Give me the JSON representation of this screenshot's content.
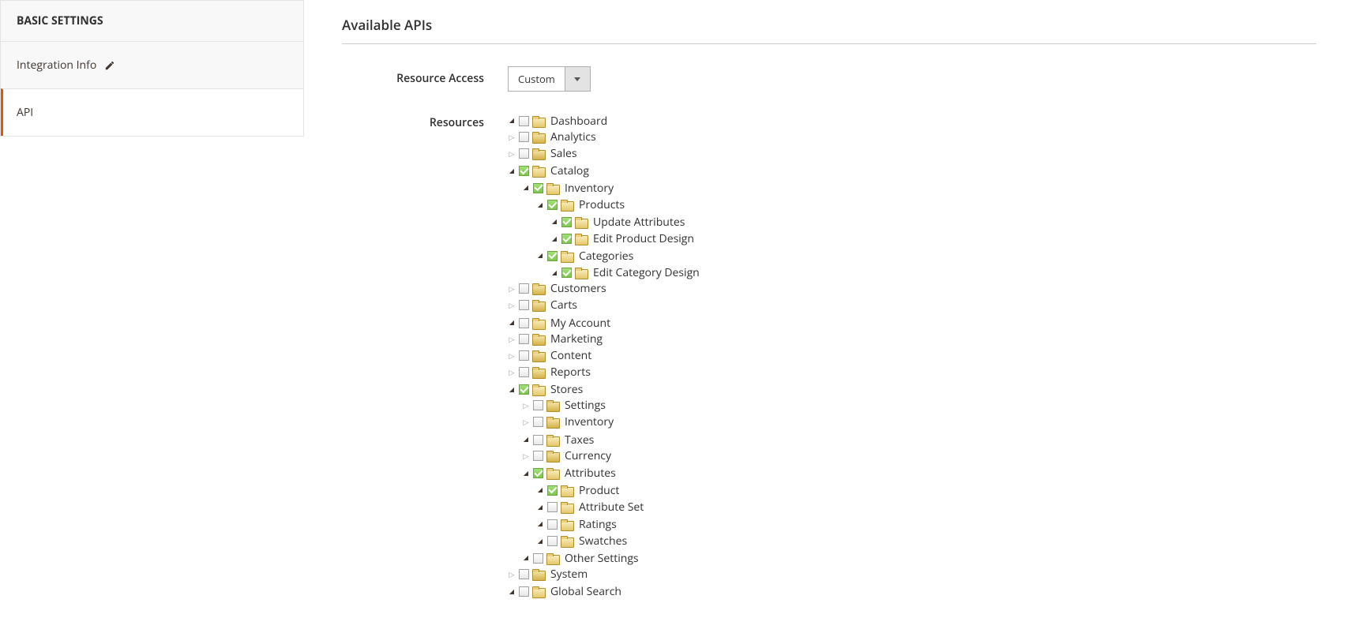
{
  "sidebar": {
    "header": "BASIC SETTINGS",
    "items": [
      {
        "label": "Integration Info",
        "icon": "pencil",
        "active": false
      },
      {
        "label": "API",
        "icon": null,
        "active": true
      }
    ]
  },
  "main": {
    "section_title": "Available APIs",
    "resource_access": {
      "label": "Resource Access",
      "value": "Custom"
    },
    "resources": {
      "label": "Resources",
      "tree": [
        {
          "label": "Dashboard",
          "expanded": true,
          "checked": false
        },
        {
          "label": "Analytics",
          "expanded": false,
          "checked": false
        },
        {
          "label": "Sales",
          "expanded": false,
          "checked": false
        },
        {
          "label": "Catalog",
          "expanded": true,
          "checked": true,
          "children": [
            {
              "label": "Inventory",
              "expanded": true,
              "checked": true,
              "children": [
                {
                  "label": "Products",
                  "expanded": true,
                  "checked": true,
                  "children": [
                    {
                      "label": "Update Attributes",
                      "expanded": true,
                      "checked": true
                    },
                    {
                      "label": "Edit Product Design",
                      "expanded": true,
                      "checked": true
                    }
                  ]
                },
                {
                  "label": "Categories",
                  "expanded": true,
                  "checked": true,
                  "children": [
                    {
                      "label": "Edit Category Design",
                      "expanded": true,
                      "checked": true
                    }
                  ]
                }
              ]
            }
          ]
        },
        {
          "label": "Customers",
          "expanded": false,
          "checked": false
        },
        {
          "label": "Carts",
          "expanded": false,
          "checked": false
        },
        {
          "label": "My Account",
          "expanded": true,
          "checked": false
        },
        {
          "label": "Marketing",
          "expanded": false,
          "checked": false
        },
        {
          "label": "Content",
          "expanded": false,
          "checked": false
        },
        {
          "label": "Reports",
          "expanded": false,
          "checked": false
        },
        {
          "label": "Stores",
          "expanded": true,
          "checked": true,
          "children": [
            {
              "label": "Settings",
              "expanded": false,
              "checked": false
            },
            {
              "label": "Inventory",
              "expanded": false,
              "checked": false
            },
            {
              "label": "Taxes",
              "expanded": true,
              "checked": false
            },
            {
              "label": "Currency",
              "expanded": false,
              "checked": false
            },
            {
              "label": "Attributes",
              "expanded": true,
              "checked": true,
              "children": [
                {
                  "label": "Product",
                  "expanded": true,
                  "checked": true
                },
                {
                  "label": "Attribute Set",
                  "expanded": true,
                  "checked": false
                },
                {
                  "label": "Ratings",
                  "expanded": true,
                  "checked": false
                },
                {
                  "label": "Swatches",
                  "expanded": true,
                  "checked": false
                }
              ]
            },
            {
              "label": "Other Settings",
              "expanded": true,
              "checked": false
            }
          ]
        },
        {
          "label": "System",
          "expanded": false,
          "checked": false
        },
        {
          "label": "Global Search",
          "expanded": true,
          "checked": false
        }
      ]
    }
  },
  "colors": {
    "accent_orange": "#eb5202",
    "check_green": "#7cc84a",
    "folder_yellow": "#d4b24a",
    "border_gray": "#adadad"
  }
}
